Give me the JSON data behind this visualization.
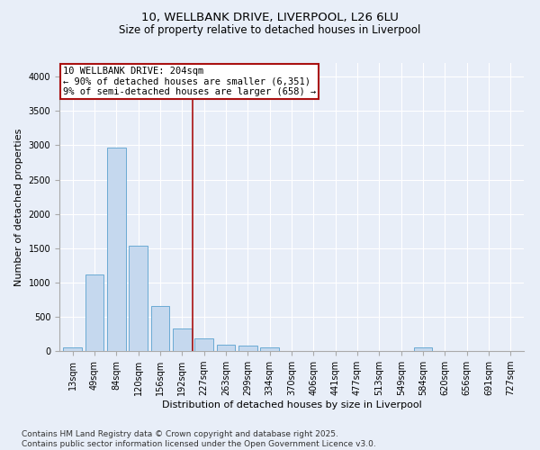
{
  "title_line1": "10, WELLBANK DRIVE, LIVERPOOL, L26 6LU",
  "title_line2": "Size of property relative to detached houses in Liverpool",
  "xlabel": "Distribution of detached houses by size in Liverpool",
  "ylabel": "Number of detached properties",
  "categories": [
    "13sqm",
    "49sqm",
    "84sqm",
    "120sqm",
    "156sqm",
    "192sqm",
    "227sqm",
    "263sqm",
    "299sqm",
    "334sqm",
    "370sqm",
    "406sqm",
    "441sqm",
    "477sqm",
    "513sqm",
    "549sqm",
    "584sqm",
    "620sqm",
    "656sqm",
    "691sqm",
    "727sqm"
  ],
  "values": [
    55,
    1110,
    2960,
    1530,
    650,
    330,
    190,
    90,
    75,
    55,
    0,
    0,
    0,
    0,
    0,
    0,
    50,
    0,
    0,
    0,
    0
  ],
  "bar_color": "#c5d8ee",
  "bar_edge_color": "#6aaad4",
  "vline_x": 5.5,
  "vline_color": "#aa1111",
  "annotation_text": "10 WELLBANK DRIVE: 204sqm\n← 90% of detached houses are smaller (6,351)\n9% of semi-detached houses are larger (658) →",
  "annotation_box_color": "#aa1111",
  "ylim": [
    0,
    4200
  ],
  "yticks": [
    0,
    500,
    1000,
    1500,
    2000,
    2500,
    3000,
    3500,
    4000
  ],
  "background_color": "#e8eef8",
  "grid_color": "#ffffff",
  "footer_line1": "Contains HM Land Registry data © Crown copyright and database right 2025.",
  "footer_line2": "Contains public sector information licensed under the Open Government Licence v3.0.",
  "title_fontsize": 9.5,
  "subtitle_fontsize": 8.5,
  "axis_label_fontsize": 8,
  "tick_fontsize": 7,
  "annotation_fontsize": 7.5,
  "footer_fontsize": 6.5
}
